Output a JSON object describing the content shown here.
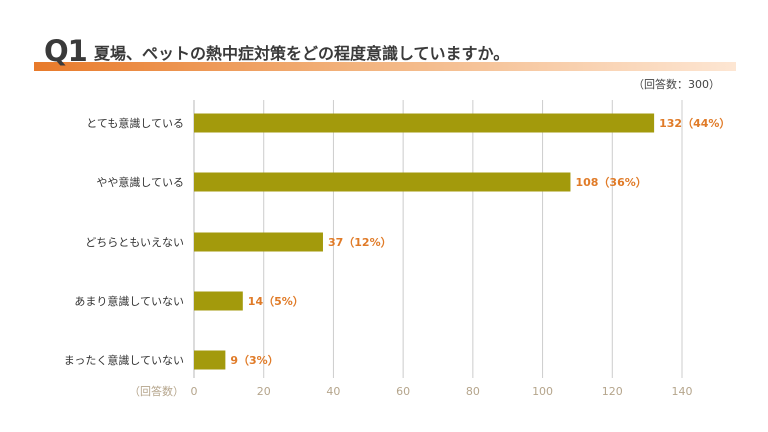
{
  "header": {
    "question_label": "Q1",
    "question_text": "夏場、ペットの熱中症対策をどの程度意識していますか。",
    "respondents_note": "（回答数：300）"
  },
  "colors": {
    "bar": "#a39a0c",
    "value_label": "#e07b28",
    "accent": "#e87a2a",
    "grid": "#cccccc"
  },
  "chart_data": {
    "type": "bar",
    "orientation": "horizontal",
    "title": "夏場、ペットの熱中症対策をどの程度意識していますか。",
    "categories": [
      "とても意識している",
      "やや意識している",
      "どちらともいえない",
      "あまり意識していない",
      "まったく意識していない"
    ],
    "values": [
      132,
      108,
      37,
      14,
      9
    ],
    "value_labels": [
      "132（44%）",
      "108（36%）",
      "37（12%）",
      "14（5%）",
      "9（3%）"
    ],
    "xlabel": "（回答数）",
    "xlim": [
      0,
      140
    ],
    "xticks": [
      0,
      20,
      40,
      60,
      80,
      100,
      120,
      140
    ],
    "grid": "vertical"
  }
}
